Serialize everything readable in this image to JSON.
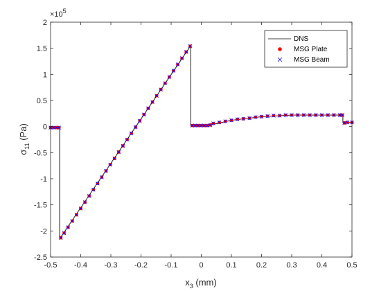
{
  "chart_data": {
    "type": "line",
    "title": "",
    "xlabel": "x",
    "xlabel_sub": "3",
    "xlabel_unit": " (mm)",
    "ylabel": "σ",
    "ylabel_sub": "11",
    "ylabel_unit": " (Pa)",
    "y_multiplier": "×10",
    "y_multiplier_exp": "5",
    "xlim": [
      -0.5,
      0.5
    ],
    "ylim": [
      -2.5,
      2.0
    ],
    "y_scale": 100000,
    "xticks": [
      "-0.5",
      "-0.4",
      "-0.3",
      "-0.2",
      "-0.1",
      "0",
      "0.1",
      "0.2",
      "0.3",
      "0.4",
      "0.5"
    ],
    "yticks": [
      "-2.5",
      "-2",
      "-1.5",
      "-1",
      "-0.5",
      "0",
      "0.5",
      "1",
      "1.5",
      "2"
    ],
    "grid": false,
    "legend_position": "top-right",
    "colors": {
      "dns": "#000000",
      "plate": "#ff0000",
      "beam": "#0000ff"
    },
    "series": [
      {
        "name": "DNS",
        "style": "line",
        "x": [
          -0.5,
          -0.47,
          -0.47,
          -0.035,
          -0.035,
          0.03,
          0.1,
          0.2,
          0.3,
          0.4,
          0.47,
          0.47,
          0.5
        ],
        "y": [
          -2000,
          -2000,
          -215000,
          155000,
          2000,
          3000,
          12000,
          19000,
          22000,
          22000,
          22000,
          7000,
          8000
        ]
      },
      {
        "name": "MSG Plate",
        "style": "dot",
        "x": [
          -0.5,
          -0.49,
          -0.48,
          -0.472,
          -0.466,
          -0.455,
          -0.442,
          -0.428,
          -0.414,
          -0.4,
          -0.386,
          -0.372,
          -0.358,
          -0.344,
          -0.33,
          -0.316,
          -0.302,
          -0.288,
          -0.274,
          -0.26,
          -0.246,
          -0.232,
          -0.218,
          -0.204,
          -0.19,
          -0.176,
          -0.162,
          -0.148,
          -0.134,
          -0.12,
          -0.106,
          -0.092,
          -0.078,
          -0.064,
          -0.05,
          -0.037,
          -0.03,
          -0.02,
          -0.01,
          0.0,
          0.01,
          0.02,
          0.03,
          0.04,
          0.06,
          0.08,
          0.1,
          0.12,
          0.14,
          0.16,
          0.18,
          0.2,
          0.22,
          0.24,
          0.26,
          0.28,
          0.3,
          0.32,
          0.34,
          0.36,
          0.38,
          0.4,
          0.42,
          0.44,
          0.46,
          0.468,
          0.475,
          0.485,
          0.5
        ],
        "y": [
          -2000,
          -2000,
          -2000,
          -2000,
          -213000,
          -204000,
          -193000,
          -181000,
          -169000,
          -157000,
          -145000,
          -133000,
          -121000,
          -109000,
          -97000,
          -85000,
          -73000,
          -61000,
          -49000,
          -37000,
          -25000,
          -13000,
          -1000,
          11000,
          23000,
          35000,
          47000,
          59000,
          71000,
          83000,
          95000,
          107000,
          119000,
          131000,
          143000,
          154000,
          2000,
          2000,
          2000,
          2000,
          2000,
          2000,
          3000,
          6000,
          8000,
          10000,
          12000,
          14000,
          15000,
          16000,
          18000,
          19000,
          20000,
          21000,
          21000,
          22000,
          22000,
          22000,
          22000,
          22000,
          22000,
          22000,
          22000,
          22000,
          22000,
          22000,
          7000,
          8000,
          8000
        ]
      },
      {
        "name": "MSG Beam",
        "style": "x",
        "x": [
          -0.5,
          -0.49,
          -0.48,
          -0.472,
          -0.466,
          -0.455,
          -0.442,
          -0.428,
          -0.414,
          -0.4,
          -0.386,
          -0.372,
          -0.358,
          -0.344,
          -0.33,
          -0.316,
          -0.302,
          -0.288,
          -0.274,
          -0.26,
          -0.246,
          -0.232,
          -0.218,
          -0.204,
          -0.19,
          -0.176,
          -0.162,
          -0.148,
          -0.134,
          -0.12,
          -0.106,
          -0.092,
          -0.078,
          -0.064,
          -0.05,
          -0.037,
          -0.03,
          -0.02,
          -0.01,
          0.0,
          0.01,
          0.02,
          0.03,
          0.04,
          0.06,
          0.08,
          0.1,
          0.12,
          0.14,
          0.16,
          0.18,
          0.2,
          0.22,
          0.24,
          0.26,
          0.28,
          0.3,
          0.32,
          0.34,
          0.36,
          0.38,
          0.4,
          0.42,
          0.44,
          0.46,
          0.468,
          0.475,
          0.485,
          0.5
        ],
        "y": [
          -2000,
          -2000,
          -2000,
          -2000,
          -213000,
          -204000,
          -193000,
          -181000,
          -169000,
          -157000,
          -145000,
          -133000,
          -121000,
          -109000,
          -97000,
          -85000,
          -73000,
          -61000,
          -49000,
          -37000,
          -25000,
          -13000,
          -1000,
          11000,
          23000,
          35000,
          47000,
          59000,
          71000,
          83000,
          95000,
          107000,
          119000,
          131000,
          143000,
          154000,
          2000,
          2000,
          2000,
          2000,
          2000,
          2000,
          3000,
          6000,
          8000,
          10000,
          12000,
          14000,
          15000,
          16000,
          18000,
          19000,
          20000,
          21000,
          21000,
          22000,
          22000,
          22000,
          22000,
          22000,
          22000,
          22000,
          22000,
          22000,
          22000,
          22000,
          7000,
          8000,
          8000
        ]
      }
    ]
  }
}
